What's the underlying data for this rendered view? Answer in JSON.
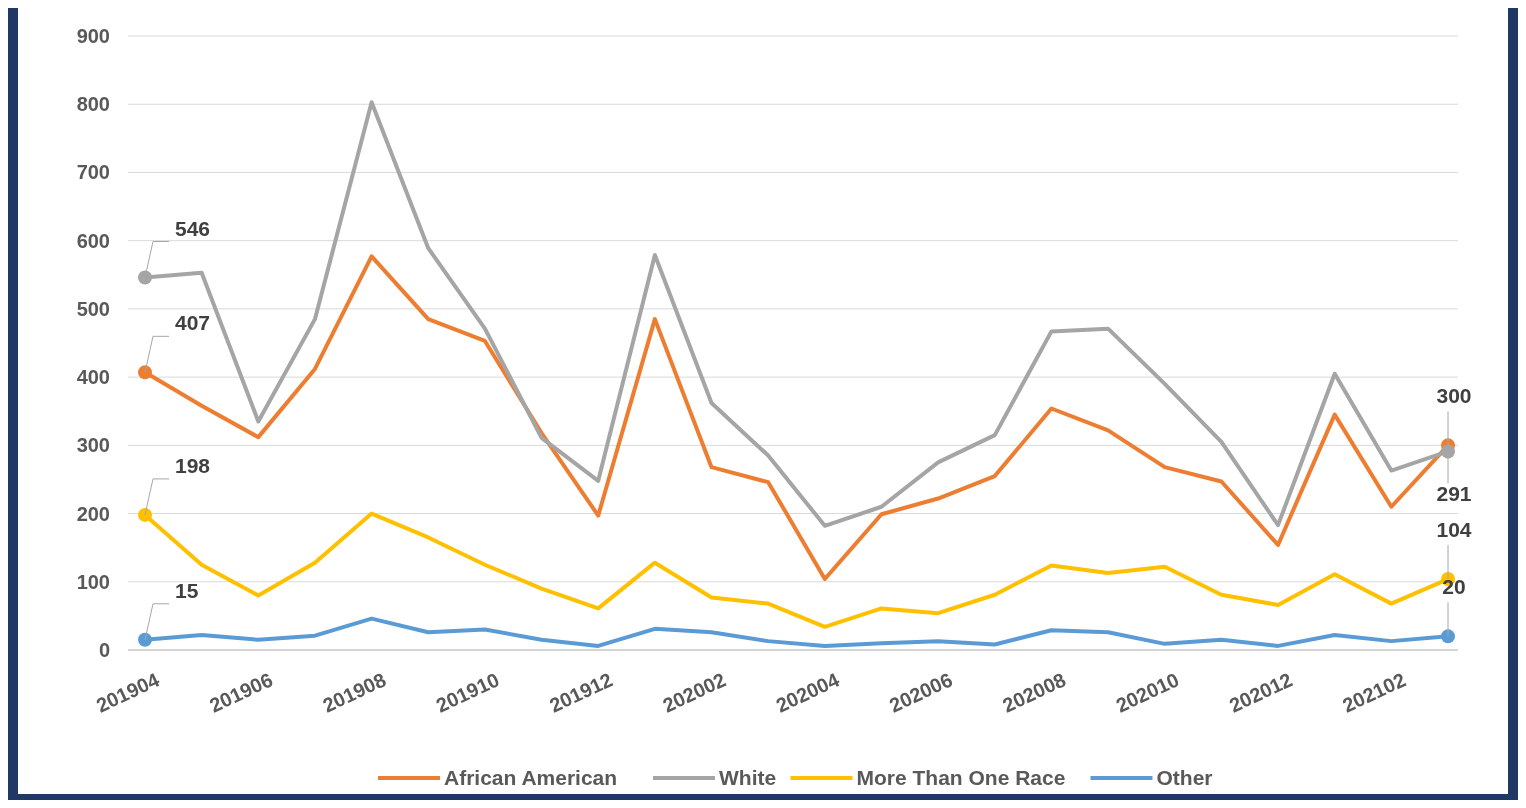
{
  "chart_data": {
    "type": "line",
    "categories": [
      "201904",
      null,
      "201906",
      null,
      "201908",
      null,
      "201910",
      null,
      "201912",
      null,
      "202002",
      null,
      "202004",
      null,
      "202006",
      null,
      "202008",
      null,
      "202010",
      null,
      "202012",
      null,
      "202102",
      null
    ],
    "ylim": [
      0,
      900
    ],
    "yticks": [
      0,
      100,
      200,
      300,
      400,
      500,
      600,
      700,
      800,
      900
    ],
    "grid": "y",
    "legend": "bottom",
    "marker": "none",
    "line_style": "solid",
    "series": [
      {
        "name": "African American",
        "color": "#ed7d31",
        "values": [
          407,
          358,
          312,
          412,
          577,
          485,
          453,
          318,
          197,
          485,
          268,
          246,
          104,
          199,
          222,
          255,
          354,
          322,
          268,
          247,
          154,
          345,
          210,
          300
        ],
        "value_labels": [
          "407",
          null,
          null,
          null,
          null,
          null,
          null,
          null,
          null,
          null,
          null,
          null,
          null,
          null,
          null,
          null,
          null,
          null,
          null,
          null,
          null,
          null,
          null,
          "300"
        ]
      },
      {
        "name": "White",
        "color": "#a5a5a5",
        "values": [
          546,
          553,
          335,
          485,
          803,
          589,
          471,
          311,
          248,
          579,
          362,
          285,
          182,
          210,
          275,
          315,
          467,
          471,
          390,
          305,
          183,
          405,
          263,
          291
        ],
        "value_labels": [
          "546",
          null,
          null,
          null,
          null,
          null,
          null,
          null,
          null,
          null,
          null,
          null,
          null,
          null,
          null,
          null,
          null,
          null,
          null,
          null,
          null,
          null,
          null,
          "291"
        ]
      },
      {
        "name": "More Than One Race",
        "color": "#ffc000",
        "values": [
          198,
          125,
          80,
          128,
          200,
          165,
          125,
          90,
          61,
          128,
          77,
          68,
          34,
          61,
          54,
          81,
          124,
          113,
          122,
          81,
          66,
          111,
          68,
          104
        ],
        "value_labels": [
          "198",
          null,
          null,
          null,
          null,
          null,
          null,
          null,
          null,
          null,
          null,
          null,
          null,
          null,
          null,
          null,
          null,
          null,
          null,
          null,
          null,
          null,
          null,
          "104"
        ]
      },
      {
        "name": "Other",
        "color": "#5b9bd5",
        "values": [
          15,
          22,
          15,
          21,
          46,
          26,
          30,
          15,
          6,
          31,
          26,
          13,
          6,
          10,
          13,
          8,
          29,
          26,
          9,
          15,
          6,
          22,
          13,
          20
        ],
        "value_labels": [
          "15",
          null,
          null,
          null,
          null,
          null,
          null,
          null,
          null,
          null,
          null,
          null,
          null,
          null,
          null,
          null,
          null,
          null,
          null,
          null,
          null,
          null,
          null,
          "20"
        ]
      }
    ]
  }
}
